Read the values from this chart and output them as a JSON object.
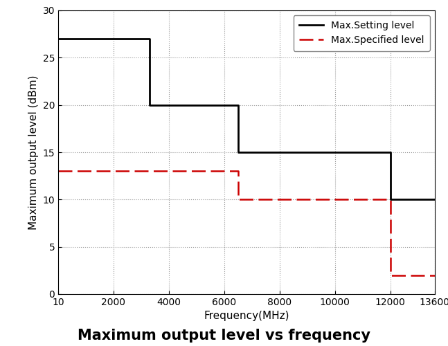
{
  "title": "Maximum output level vs frequency",
  "xlabel": "Frequency(MHz)",
  "ylabel": "Maximum output level (dBm)",
  "xlim": [
    10,
    13600
  ],
  "ylim": [
    0,
    30
  ],
  "xticks": [
    10,
    2000,
    4000,
    6000,
    8000,
    10000,
    12000,
    13600
  ],
  "yticks": [
    0,
    5,
    10,
    15,
    20,
    25,
    30
  ],
  "setting_x": [
    10,
    3300,
    3300,
    6500,
    6500,
    12000,
    12000,
    13600
  ],
  "setting_y": [
    27,
    27,
    20,
    20,
    15,
    15,
    10,
    10
  ],
  "specified_x": [
    10,
    6500,
    6500,
    12000,
    12000,
    13600
  ],
  "specified_y": [
    13,
    13,
    10,
    10,
    2,
    2
  ],
  "setting_color": "#000000",
  "specified_color": "#cc0000",
  "setting_label": "Max.Setting level",
  "specified_label": "Max.Specified level",
  "grid_color": "#999999",
  "background_color": "#ffffff",
  "title_fontsize": 15,
  "label_fontsize": 11,
  "tick_fontsize": 10,
  "legend_fontsize": 10
}
